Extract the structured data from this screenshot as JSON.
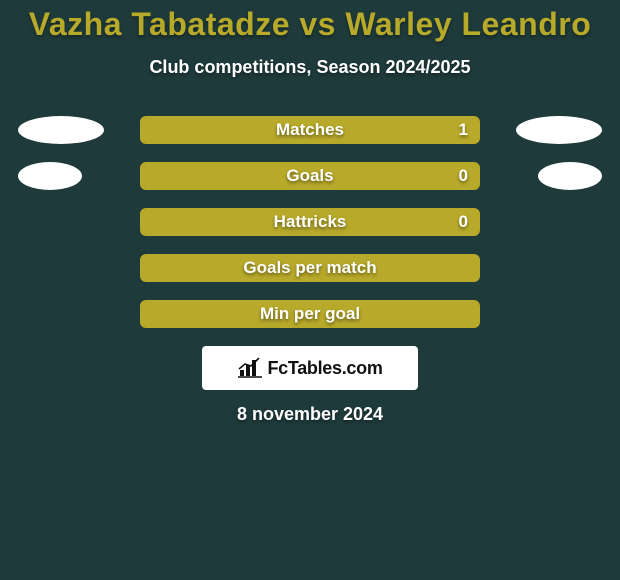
{
  "colors": {
    "background": "#1f3a3a",
    "title": "#b7a92a",
    "subtitle": "#ffffff",
    "bar_border": "#b7a92a",
    "bar_fill": "#b7a92a",
    "bar_label": "#ffffff",
    "bar_value": "#ffffff",
    "ellipse": "#ffffff",
    "logo_bg": "#ffffff",
    "logo_text": "#111111",
    "date_text": "#ffffff"
  },
  "title": "Vazha Tabatadze vs Warley Leandro",
  "subtitle": "Club competitions, Season 2024/2025",
  "ellipse": {
    "width_large": 86,
    "width_small": 64
  },
  "rows": [
    {
      "label": "Matches",
      "value": "1",
      "fill_pct": 100,
      "left_ellipse": "large",
      "right_ellipse": "large"
    },
    {
      "label": "Goals",
      "value": "0",
      "fill_pct": 100,
      "left_ellipse": "small",
      "right_ellipse": "small"
    },
    {
      "label": "Hattricks",
      "value": "0",
      "fill_pct": 100,
      "left_ellipse": null,
      "right_ellipse": null
    },
    {
      "label": "Goals per match",
      "value": "",
      "fill_pct": 100,
      "left_ellipse": null,
      "right_ellipse": null
    },
    {
      "label": "Min per goal",
      "value": "",
      "fill_pct": 100,
      "left_ellipse": null,
      "right_ellipse": null
    }
  ],
  "logo_text": "FcTables.com",
  "date": "8 november 2024"
}
